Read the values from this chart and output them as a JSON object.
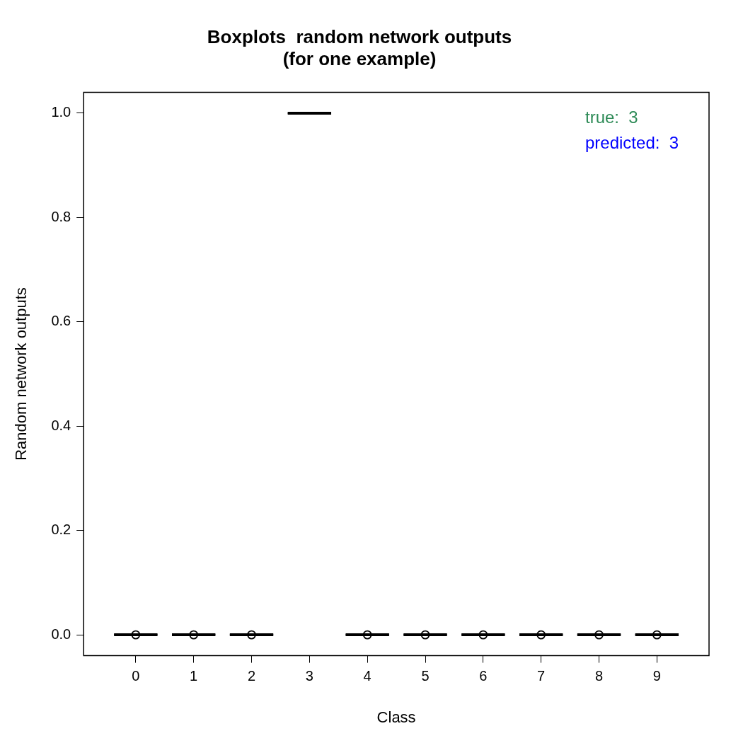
{
  "chart_data": {
    "type": "box",
    "title": "Boxplots  random network outputs\n(for one example)",
    "xlabel": "Class",
    "ylabel": "Random network outputs",
    "categories": [
      "0",
      "1",
      "2",
      "3",
      "4",
      "5",
      "6",
      "7",
      "8",
      "9"
    ],
    "boxes": [
      {
        "low": 0,
        "q1": 0,
        "median": 0,
        "q3": 0,
        "high": 0,
        "outliers": [
          0
        ]
      },
      {
        "low": 0,
        "q1": 0,
        "median": 0,
        "q3": 0,
        "high": 0,
        "outliers": [
          0
        ]
      },
      {
        "low": 0,
        "q1": 0,
        "median": 0,
        "q3": 0,
        "high": 0,
        "outliers": [
          0
        ]
      },
      {
        "low": 1,
        "q1": 1,
        "median": 1,
        "q3": 1,
        "high": 1
      },
      {
        "low": 0,
        "q1": 0,
        "median": 0,
        "q3": 0,
        "high": 0,
        "outliers": [
          0
        ]
      },
      {
        "low": 0,
        "q1": 0,
        "median": 0,
        "q3": 0,
        "high": 0,
        "outliers": [
          0
        ]
      },
      {
        "low": 0,
        "q1": 0,
        "median": 0,
        "q3": 0,
        "high": 0,
        "outliers": [
          0
        ]
      },
      {
        "low": 0,
        "q1": 0,
        "median": 0,
        "q3": 0,
        "high": 0,
        "outliers": [
          0
        ]
      },
      {
        "low": 0,
        "q1": 0,
        "median": 0,
        "q3": 0,
        "high": 0,
        "outliers": [
          0
        ]
      },
      {
        "low": 0,
        "q1": 0,
        "median": 0,
        "q3": 0,
        "high": 0,
        "outliers": [
          0
        ]
      }
    ],
    "ylim": [
      -0.04,
      1.04
    ],
    "yticks": [
      {
        "value": 0,
        "label": "0.0"
      },
      {
        "value": 0.2,
        "label": "0.2"
      },
      {
        "value": 0.4,
        "label": "0.4"
      },
      {
        "value": 0.6,
        "label": "0.6"
      },
      {
        "value": 0.8,
        "label": "0.8"
      },
      {
        "value": 1,
        "label": "1.0"
      }
    ],
    "annotations": [
      "true:  3",
      "predicted:  3"
    ]
  }
}
